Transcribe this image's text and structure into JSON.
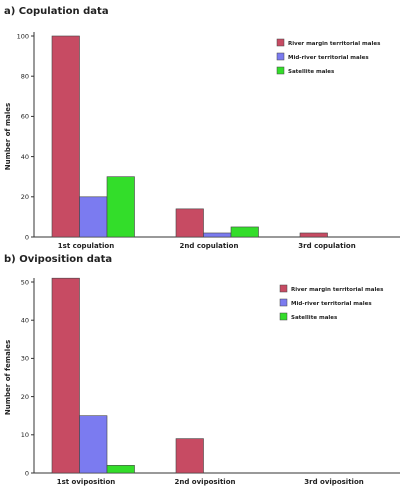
{
  "chart_data": [
    {
      "type": "bar",
      "title": "a) Copulation data",
      "xlabel": "",
      "ylabel": "Number of males",
      "ylim": [
        0,
        100
      ],
      "yticks": [
        0,
        20,
        40,
        60,
        80,
        100
      ],
      "categories": [
        "1st copulation",
        "2nd copulation",
        "3rd copulation"
      ],
      "legend_position": "top-right",
      "series": [
        {
          "name": "River margin territorial males",
          "color": "#c74b63",
          "values": [
            100,
            14,
            2
          ]
        },
        {
          "name": "Mid-river territorial males",
          "color": "#7b7bf0",
          "values": [
            20,
            2,
            0
          ]
        },
        {
          "name": "Satellite males",
          "color": "#33dd2a",
          "values": [
            30,
            5,
            0
          ]
        }
      ]
    },
    {
      "type": "bar",
      "title": "b) Oviposition data",
      "xlabel": "",
      "ylabel": "Number of females",
      "ylim": [
        0,
        50
      ],
      "yticks": [
        0,
        10,
        20,
        30,
        40,
        50
      ],
      "categories": [
        "1st oviposition",
        "2nd oviposition",
        "3rd oviposition"
      ],
      "legend_position": "top-right",
      "series": [
        {
          "name": "River margin territorial males",
          "color": "#c74b63",
          "values": [
            51,
            9,
            0
          ]
        },
        {
          "name": "Mid-river territorial males",
          "color": "#7b7bf0",
          "values": [
            15,
            0,
            0
          ]
        },
        {
          "name": "Satellite males",
          "color": "#33dd2a",
          "values": [
            2,
            0,
            0
          ]
        }
      ]
    }
  ]
}
